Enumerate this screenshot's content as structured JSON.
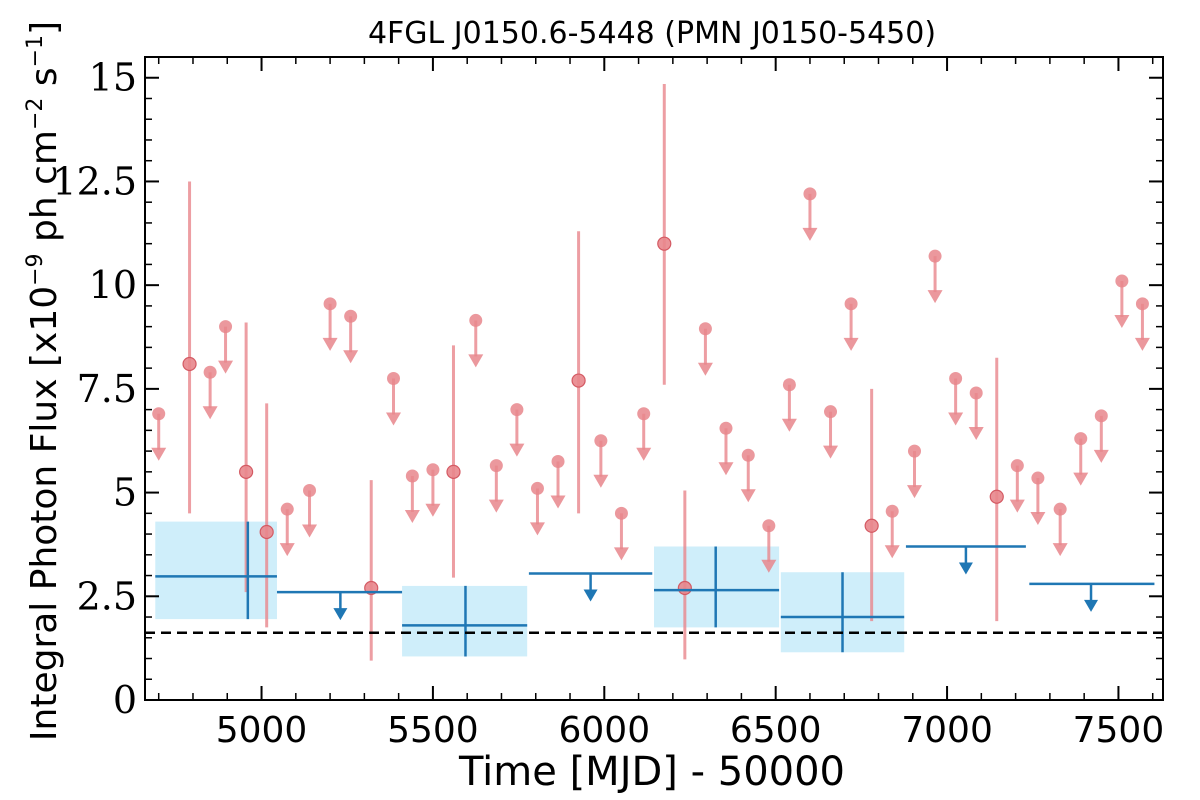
{
  "chart_data": {
    "type": "scatter",
    "title": "4FGL J0150.6-5448 (PMN J0150-5450)",
    "xlabel": "Time [MJD] - 50000",
    "ylabel": "Integral Photon Flux [x10",
    "ylabel_exponent": "−9",
    "ylabel_unit": " ph cm",
    "ylabel_unit_exponent": "−2",
    "ylabel_unit_tail": " s",
    "ylabel_unit_tail_exponent": "−1",
    "ylabel_close": "]",
    "xlim": [
      4660,
      7630
    ],
    "ylim": [
      0,
      15.5
    ],
    "xticks": [
      5000,
      5500,
      6000,
      6500,
      7000,
      7500
    ],
    "xtick_labels": [
      "5000",
      "5500",
      "6000",
      "6500",
      "7000",
      "7500"
    ],
    "yticks": [
      0,
      2.5,
      5,
      7.5,
      10,
      12.5,
      15
    ],
    "ytick_labels": [
      "0",
      "2.5",
      "5",
      "7.5",
      "10",
      "12.5",
      "15"
    ],
    "reference_line": {
      "y": 1.62,
      "style": "dashed",
      "color": "#000000"
    },
    "series": [
      {
        "type": "short_bins_detections",
        "color": "#e8868c",
        "points": [
          {
            "x": 4790,
            "y": 8.1,
            "ylo": 4.5,
            "yhi": 12.5
          },
          {
            "x": 4955,
            "y": 5.5,
            "ylo": 2.6,
            "yhi": 9.1
          },
          {
            "x": 5015,
            "y": 4.05,
            "ylo": 1.75,
            "yhi": 7.15
          },
          {
            "x": 5320,
            "y": 2.7,
            "ylo": 0.95,
            "yhi": 5.3
          },
          {
            "x": 5560,
            "y": 5.5,
            "ylo": 2.95,
            "yhi": 8.55
          },
          {
            "x": 5925,
            "y": 7.7,
            "ylo": 4.5,
            "yhi": 11.3
          },
          {
            "x": 6175,
            "y": 11.0,
            "ylo": 7.6,
            "yhi": 14.85
          },
          {
            "x": 6235,
            "y": 2.7,
            "ylo": 0.98,
            "yhi": 5.05
          },
          {
            "x": 6780,
            "y": 4.2,
            "ylo": 1.9,
            "yhi": 7.5
          },
          {
            "x": 7145,
            "y": 4.9,
            "ylo": 1.9,
            "yhi": 8.25
          }
        ]
      },
      {
        "type": "short_bins_upper_limits",
        "color": "#e8868c",
        "points": [
          {
            "x": 4700,
            "y": 6.9
          },
          {
            "x": 4850,
            "y": 7.9
          },
          {
            "x": 4895,
            "y": 9.0
          },
          {
            "x": 5075,
            "y": 4.6
          },
          {
            "x": 5140,
            "y": 5.05
          },
          {
            "x": 5200,
            "y": 9.55
          },
          {
            "x": 5260,
            "y": 9.25
          },
          {
            "x": 5385,
            "y": 7.75
          },
          {
            "x": 5440,
            "y": 5.4
          },
          {
            "x": 5500,
            "y": 5.55
          },
          {
            "x": 5625,
            "y": 9.15
          },
          {
            "x": 5685,
            "y": 5.65
          },
          {
            "x": 5745,
            "y": 7.0
          },
          {
            "x": 5805,
            "y": 5.1
          },
          {
            "x": 5865,
            "y": 5.75
          },
          {
            "x": 5990,
            "y": 6.25
          },
          {
            "x": 6050,
            "y": 4.5
          },
          {
            "x": 6115,
            "y": 6.9
          },
          {
            "x": 6295,
            "y": 8.95
          },
          {
            "x": 6355,
            "y": 6.55
          },
          {
            "x": 6420,
            "y": 5.9
          },
          {
            "x": 6480,
            "y": 4.2
          },
          {
            "x": 6540,
            "y": 7.6
          },
          {
            "x": 6600,
            "y": 12.2
          },
          {
            "x": 6660,
            "y": 6.95
          },
          {
            "x": 6720,
            "y": 9.55
          },
          {
            "x": 6840,
            "y": 4.55
          },
          {
            "x": 6905,
            "y": 6.0
          },
          {
            "x": 6965,
            "y": 10.7
          },
          {
            "x": 7025,
            "y": 7.75
          },
          {
            "x": 7085,
            "y": 7.4
          },
          {
            "x": 7205,
            "y": 5.65
          },
          {
            "x": 7265,
            "y": 5.35
          },
          {
            "x": 7330,
            "y": 4.6
          },
          {
            "x": 7390,
            "y": 6.3
          },
          {
            "x": 7450,
            "y": 6.85
          },
          {
            "x": 7510,
            "y": 10.1
          },
          {
            "x": 7570,
            "y": 9.55
          }
        ]
      },
      {
        "type": "long_bins_detections",
        "color": "#1f77b4",
        "band_color": "#cfeefa",
        "points": [
          {
            "x": 4960,
            "xlo": 4690,
            "xhi": 5045,
            "y": 2.98,
            "ylo": 1.95,
            "yhi": 4.3
          },
          {
            "x": 5595,
            "xlo": 5410,
            "xhi": 5775,
            "y": 1.8,
            "ylo": 1.05,
            "yhi": 2.75
          },
          {
            "x": 6325,
            "xlo": 6145,
            "xhi": 6510,
            "y": 2.65,
            "ylo": 1.75,
            "yhi": 3.7
          },
          {
            "x": 6695,
            "xlo": 6515,
            "xhi": 6875,
            "y": 2.0,
            "ylo": 1.15,
            "yhi": 3.08
          }
        ]
      },
      {
        "type": "long_bins_upper_limits",
        "color": "#1f77b4",
        "points": [
          {
            "x": 5230,
            "xlo": 5045,
            "xhi": 5410,
            "y": 2.6
          },
          {
            "x": 5960,
            "xlo": 5780,
            "xhi": 6140,
            "y": 3.05
          },
          {
            "x": 7055,
            "xlo": 6880,
            "xhi": 7230,
            "y": 3.7
          },
          {
            "x": 7420,
            "xlo": 7240,
            "xhi": 7605,
            "y": 2.8
          }
        ]
      }
    ],
    "grid": false,
    "legend": "none"
  }
}
